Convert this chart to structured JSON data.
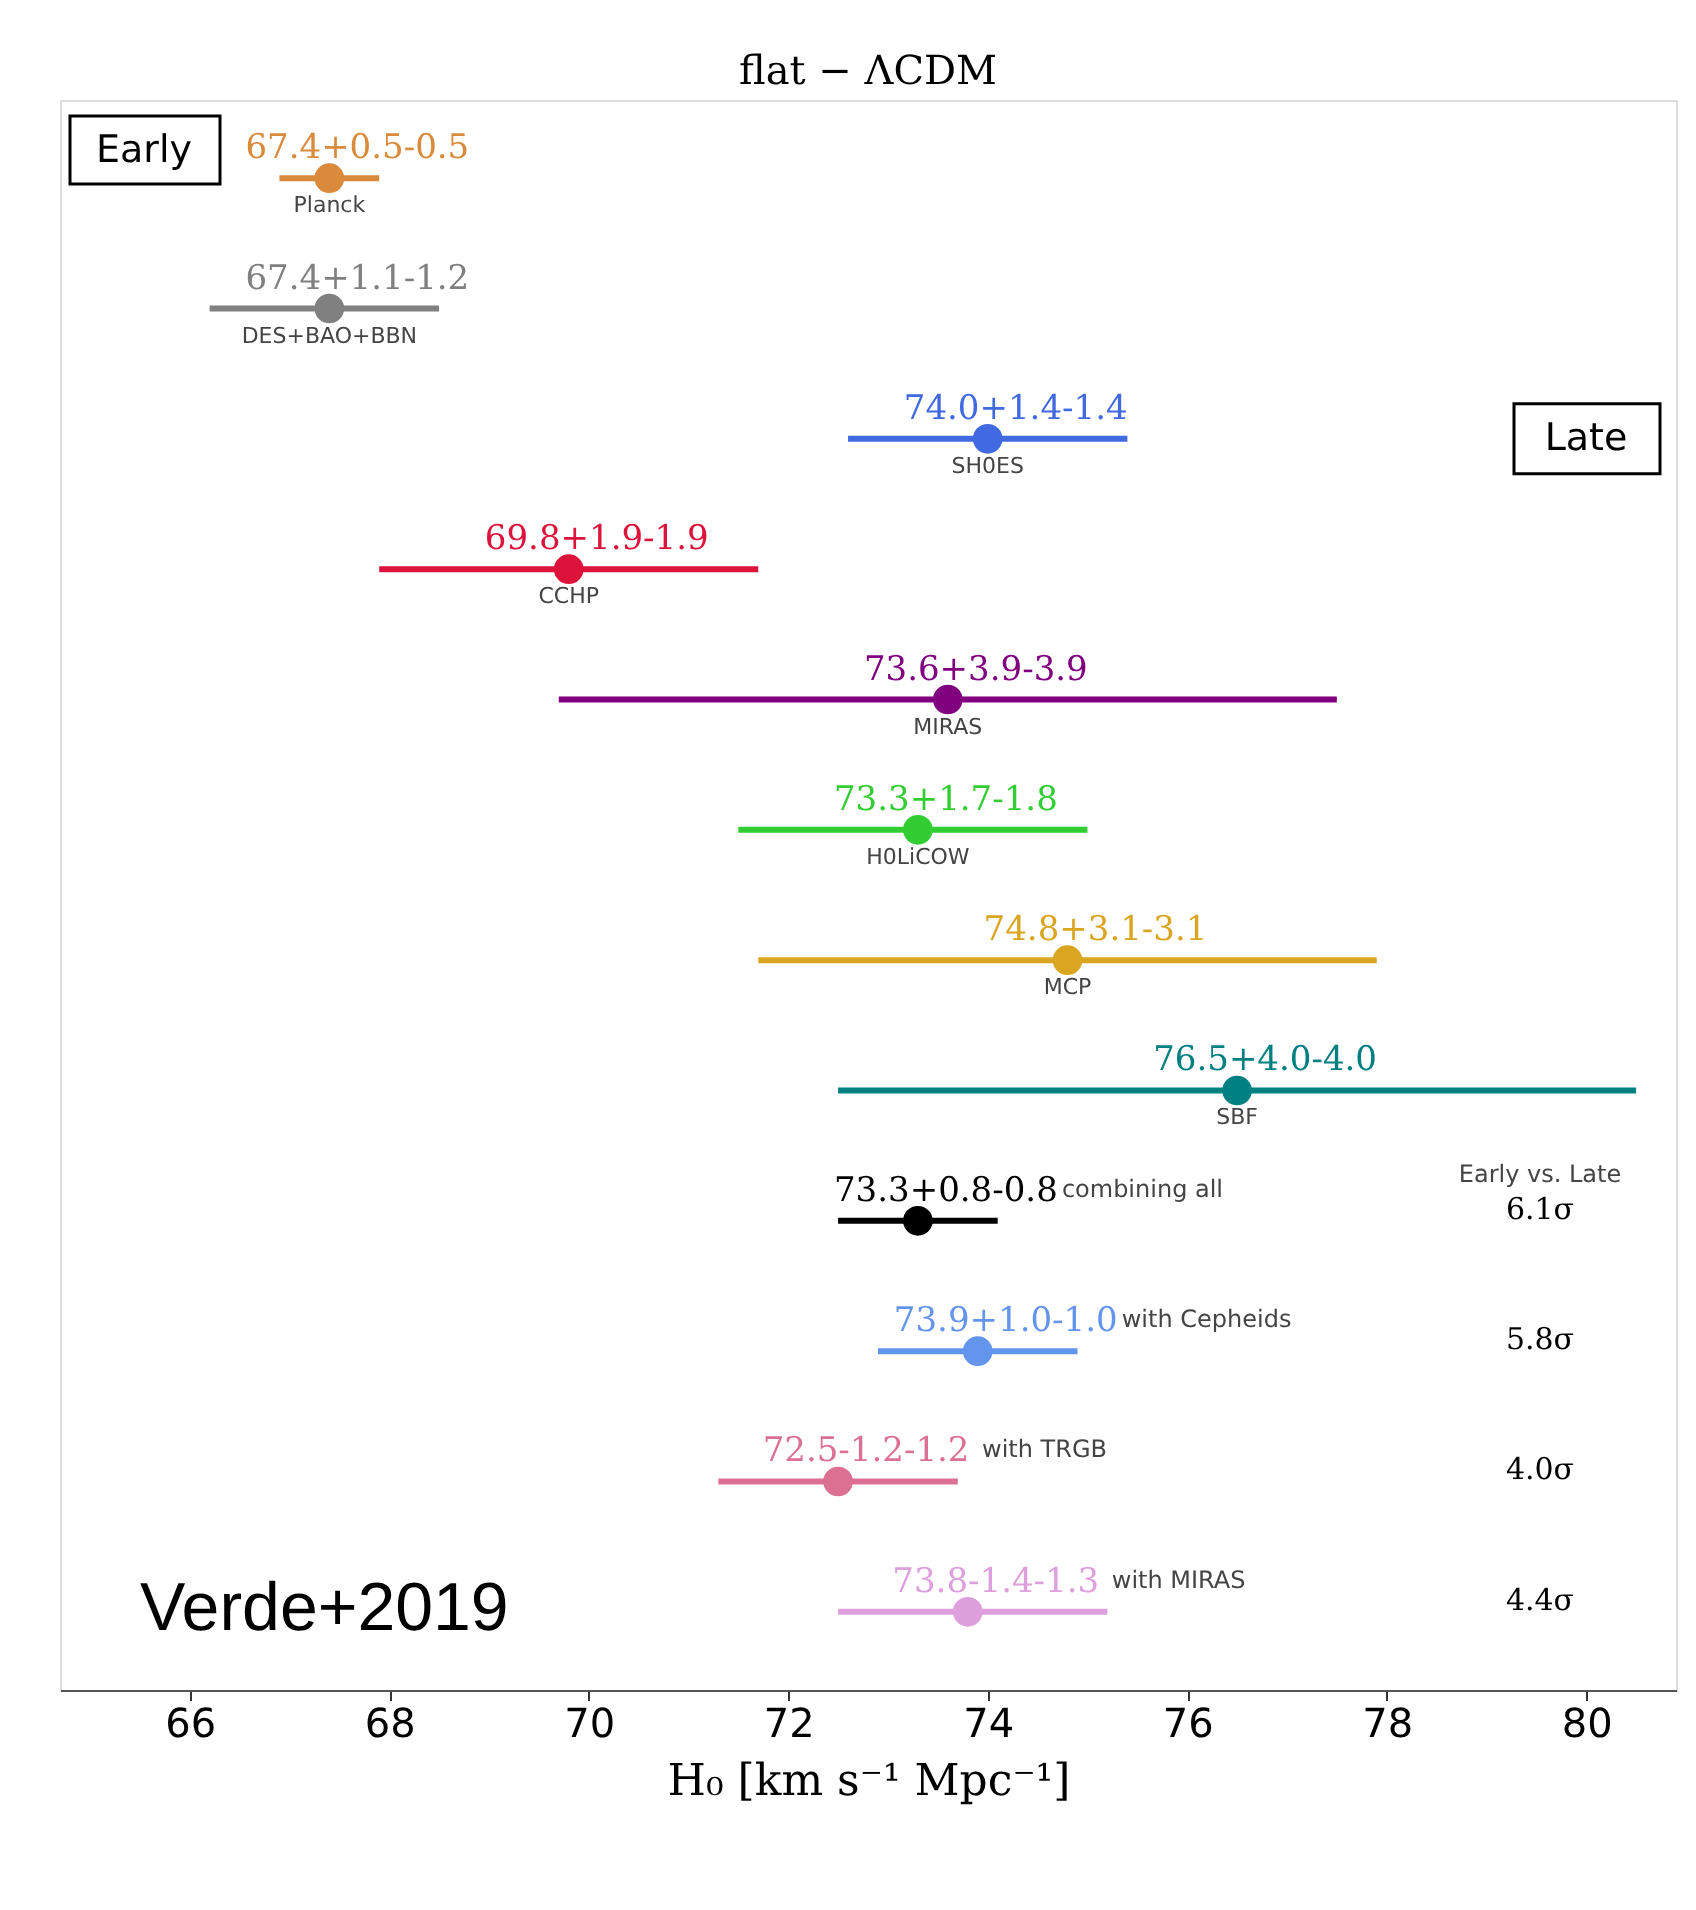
{
  "chart_data": {
    "type": "scatter",
    "orientation": "horizontal",
    "title": "flat − ΛCDM",
    "xlabel": "H₀ [km s⁻¹ Mpc⁻¹]",
    "categories": [
      "Planck",
      "DES+BAO+BBN",
      "SH0ES",
      "CCHP",
      "MIRAS",
      "H0LiCOW",
      "MCP",
      "SBF",
      "combining all",
      "with Cepheids",
      "with TRGB",
      "with MIRAS"
    ],
    "values": [
      67.4,
      67.4,
      74.0,
      69.8,
      73.6,
      73.3,
      74.8,
      76.5,
      73.3,
      73.9,
      72.5,
      73.8
    ],
    "errors": [
      0.5,
      [
        66.2,
        68.5
      ],
      1.4,
      1.9,
      3.9,
      [
        71.5,
        75.0
      ],
      3.1,
      4.0,
      0.8,
      1.0,
      1.2,
      [
        72.5,
        75.2
      ]
    ],
    "colors": [
      "#d98a3a",
      "#808080",
      "#4169e1",
      "#dc143c",
      "#800080",
      "#32cd32",
      "#daa520",
      "#008080",
      "#000000",
      "#6495ed",
      "#db7093",
      "#dda0dd"
    ],
    "value_labels": [
      "67.4+0.5-0.5",
      "67.4+1.1-1.2",
      "74.0+1.4-1.4",
      "69.8+1.9-1.9",
      "73.6+3.9-3.9",
      "73.3+1.7-1.8",
      "74.8+3.1-3.1",
      "76.5+4.0-4.0",
      "73.3+0.8-0.8",
      "73.9+1.0-1.0",
      "72.5-1.2-1.2",
      "73.8-1.4-1.3"
    ],
    "marker": "circle",
    "xlim": [
      64.7,
      80.9
    ],
    "xticks": [
      66,
      68,
      70,
      72,
      74,
      76,
      78,
      80
    ],
    "grid": false,
    "legend": false,
    "annotations": [
      "Early",
      "Late",
      "Early vs. Late",
      "6.1σ",
      "5.8σ",
      "4.0σ",
      "4.4σ",
      "Verde+2019"
    ]
  }
}
